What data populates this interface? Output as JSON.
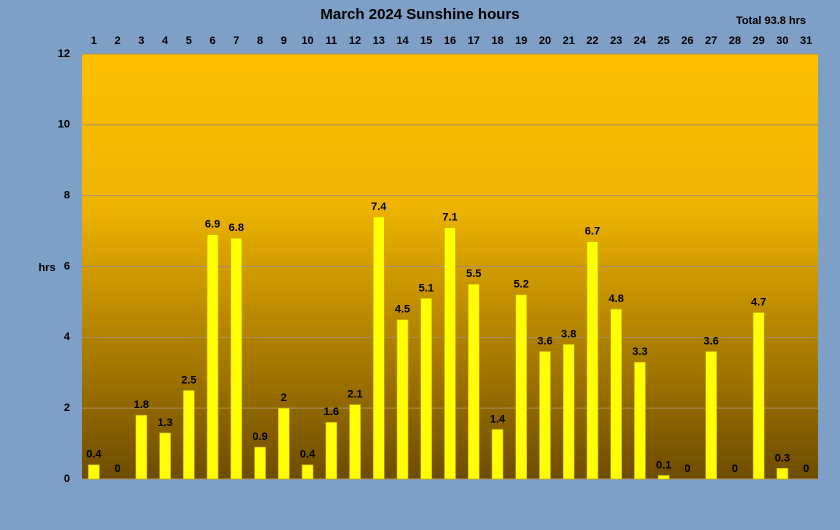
{
  "chart_data": {
    "type": "bar",
    "title": "March 2024 Sunshine hours",
    "annotation": "Total 93.8 hrs",
    "y_label": "hrs",
    "categories": [
      "1",
      "2",
      "3",
      "4",
      "5",
      "6",
      "7",
      "8",
      "9",
      "10",
      "11",
      "12",
      "13",
      "14",
      "15",
      "16",
      "17",
      "18",
      "19",
      "20",
      "21",
      "22",
      "23",
      "24",
      "25",
      "26",
      "27",
      "28",
      "29",
      "30",
      "31"
    ],
    "values": [
      0.4,
      0,
      1.8,
      1.3,
      2.5,
      6.9,
      6.8,
      0.9,
      2,
      0.4,
      1.6,
      2.1,
      7.4,
      4.5,
      5.1,
      7.1,
      5.5,
      1.4,
      5.2,
      3.6,
      3.8,
      6.7,
      4.8,
      3.3,
      0.1,
      0,
      3.6,
      0,
      4.7,
      0.3,
      0
    ],
    "color": "#ffff00",
    "ylim": [
      0,
      12
    ],
    "yticks": [
      0,
      2,
      4,
      6,
      8,
      10,
      12
    ],
    "grid": true
  }
}
